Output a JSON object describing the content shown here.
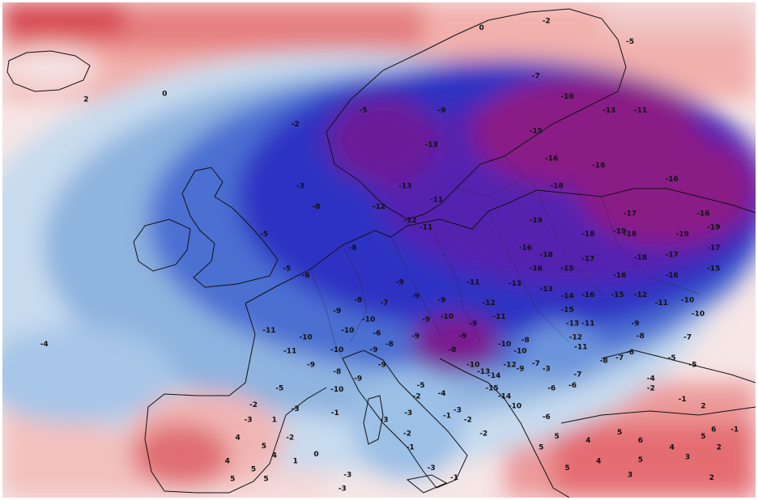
{
  "map": {
    "type": "temperature-anomaly-map",
    "region": "Europe",
    "colors": {
      "warm_strong": "#d6454e",
      "warm": "#f08c8c",
      "warm_light": "#f7c9c4",
      "neutral": "#f6eef0",
      "cool_light": "#c8dbee",
      "cool": "#8fb4df",
      "cold": "#4b70d2",
      "colder": "#2e33c2",
      "very_cold": "#6220a8",
      "extreme_cold": "#8a1c86",
      "coastline": "#111111"
    },
    "labels": [
      {
        "text": "2",
        "lon": -22,
        "lat": 64.8
      },
      {
        "text": "0",
        "lon": -14.5,
        "lat": 65.2
      },
      {
        "text": "-2",
        "lon": -2,
        "lat": 63
      },
      {
        "text": "-3",
        "lon": -1.5,
        "lat": 58.5
      },
      {
        "text": "-5",
        "lon": 4.5,
        "lat": 64
      },
      {
        "text": "-5",
        "lon": -5,
        "lat": 55
      },
      {
        "text": "-5",
        "lon": -2.8,
        "lat": 52.5
      },
      {
        "text": "-6",
        "lon": -1,
        "lat": 52
      },
      {
        "text": "-8",
        "lon": 0,
        "lat": 57
      },
      {
        "text": "-8",
        "lon": 3.5,
        "lat": 54
      },
      {
        "text": "-4",
        "lon": -26,
        "lat": 47
      },
      {
        "text": "0",
        "lon": 15.8,
        "lat": 70
      },
      {
        "text": "-2",
        "lon": 22,
        "lat": 70.5
      },
      {
        "text": "-5",
        "lon": 30,
        "lat": 69
      },
      {
        "text": "-7",
        "lon": 21,
        "lat": 66.5
      },
      {
        "text": "-10",
        "lon": 24,
        "lat": 65
      },
      {
        "text": "-13",
        "lon": 28,
        "lat": 64
      },
      {
        "text": "-11",
        "lon": 31,
        "lat": 64
      },
      {
        "text": "-9",
        "lon": 12,
        "lat": 64
      },
      {
        "text": "-13",
        "lon": 11,
        "lat": 61.5
      },
      {
        "text": "-15",
        "lon": 21,
        "lat": 62.5
      },
      {
        "text": "-16",
        "lon": 22.5,
        "lat": 60.5
      },
      {
        "text": "-18",
        "lon": 23,
        "lat": 58.5
      },
      {
        "text": "-16",
        "lon": 27,
        "lat": 60
      },
      {
        "text": "-16",
        "lon": 34,
        "lat": 59
      },
      {
        "text": "-16",
        "lon": 37,
        "lat": 56.5
      },
      {
        "text": "-13",
        "lon": 8.5,
        "lat": 58.5
      },
      {
        "text": "-12",
        "lon": 6,
        "lat": 57
      },
      {
        "text": "-12",
        "lon": 9,
        "lat": 56
      },
      {
        "text": "-11",
        "lon": 11.5,
        "lat": 57.5
      },
      {
        "text": "-11",
        "lon": 10.5,
        "lat": 55.5
      },
      {
        "text": "-17",
        "lon": 30,
        "lat": 56.5
      },
      {
        "text": "-18",
        "lon": 30,
        "lat": 55
      },
      {
        "text": "-19",
        "lon": 21,
        "lat": 56
      },
      {
        "text": "-18",
        "lon": 26,
        "lat": 55
      },
      {
        "text": "-19",
        "lon": 29,
        "lat": 55.2
      },
      {
        "text": "-19",
        "lon": 35,
        "lat": 55
      },
      {
        "text": "-19",
        "lon": 38,
        "lat": 55.5
      },
      {
        "text": "-17",
        "lon": 38,
        "lat": 54
      },
      {
        "text": "-16",
        "lon": 20,
        "lat": 54
      },
      {
        "text": "-18",
        "lon": 22,
        "lat": 53.5
      },
      {
        "text": "-17",
        "lon": 26,
        "lat": 53.2
      },
      {
        "text": "-18",
        "lon": 31,
        "lat": 53.3
      },
      {
        "text": "-17",
        "lon": 34,
        "lat": 53.5
      },
      {
        "text": "-16",
        "lon": 21,
        "lat": 52.5
      },
      {
        "text": "-15",
        "lon": 24,
        "lat": 52.5
      },
      {
        "text": "-16",
        "lon": 29,
        "lat": 52
      },
      {
        "text": "-16",
        "lon": 34,
        "lat": 52
      },
      {
        "text": "-15",
        "lon": 38,
        "lat": 52.5
      },
      {
        "text": "-11",
        "lon": 15,
        "lat": 51.5
      },
      {
        "text": "-13",
        "lon": 19,
        "lat": 51.4
      },
      {
        "text": "-13",
        "lon": 22,
        "lat": 51
      },
      {
        "text": "-14",
        "lon": 24,
        "lat": 50.5
      },
      {
        "text": "-16",
        "lon": 26,
        "lat": 50.6
      },
      {
        "text": "-15",
        "lon": 28.8,
        "lat": 50.6
      },
      {
        "text": "-12",
        "lon": 31,
        "lat": 50.6
      },
      {
        "text": "-11",
        "lon": 33,
        "lat": 50
      },
      {
        "text": "-10",
        "lon": 35.5,
        "lat": 50.2
      },
      {
        "text": "-10",
        "lon": 36.5,
        "lat": 49.2
      },
      {
        "text": "-9",
        "lon": 12,
        "lat": 50.2
      },
      {
        "text": "-12",
        "lon": 16.5,
        "lat": 50
      },
      {
        "text": "-11",
        "lon": 17.5,
        "lat": 49
      },
      {
        "text": "-15",
        "lon": 24,
        "lat": 49.5
      },
      {
        "text": "-13",
        "lon": 24.5,
        "lat": 48.5
      },
      {
        "text": "-11",
        "lon": 26,
        "lat": 48.5
      },
      {
        "text": "-12",
        "lon": 24.8,
        "lat": 47.5
      },
      {
        "text": "-11",
        "lon": 25.3,
        "lat": 46.8
      },
      {
        "text": "-9",
        "lon": 30.5,
        "lat": 48.5
      },
      {
        "text": "-8",
        "lon": 31,
        "lat": 47.6
      },
      {
        "text": "-7",
        "lon": 35.5,
        "lat": 47.5
      },
      {
        "text": "-7",
        "lon": 29,
        "lat": 46
      },
      {
        "text": "-8",
        "lon": 27.5,
        "lat": 45.8
      },
      {
        "text": "-6",
        "lon": 30,
        "lat": 46.4
      },
      {
        "text": "-5",
        "lon": 34,
        "lat": 46
      },
      {
        "text": "-5",
        "lon": 36,
        "lat": 45.5
      },
      {
        "text": "-4",
        "lon": 32,
        "lat": 44.5
      },
      {
        "text": "-2",
        "lon": 32,
        "lat": 43.8
      },
      {
        "text": "-1",
        "lon": 35,
        "lat": 43
      },
      {
        "text": "2",
        "lon": 37,
        "lat": 42.5
      },
      {
        "text": "-9",
        "lon": 8,
        "lat": 51.5
      },
      {
        "text": "-9",
        "lon": 9.5,
        "lat": 50.5
      },
      {
        "text": "-8",
        "lon": 4,
        "lat": 50.2
      },
      {
        "text": "-7",
        "lon": 6.5,
        "lat": 50
      },
      {
        "text": "-9",
        "lon": 2,
        "lat": 49.4
      },
      {
        "text": "-10",
        "lon": 5,
        "lat": 48.8
      },
      {
        "text": "-9",
        "lon": 10.5,
        "lat": 48.8
      },
      {
        "text": "-10",
        "lon": 12.5,
        "lat": 49
      },
      {
        "text": "-9",
        "lon": 15,
        "lat": 48.5
      },
      {
        "text": "-9",
        "lon": 14,
        "lat": 47.6
      },
      {
        "text": "-10",
        "lon": 3,
        "lat": 48
      },
      {
        "text": "-6",
        "lon": 5.8,
        "lat": 47.8
      },
      {
        "text": "-8",
        "lon": 7,
        "lat": 47
      },
      {
        "text": "-9",
        "lon": 9.5,
        "lat": 47.6
      },
      {
        "text": "-8",
        "lon": 13,
        "lat": 46.6
      },
      {
        "text": "-8",
        "lon": 20,
        "lat": 47.3
      },
      {
        "text": "-10",
        "lon": 18,
        "lat": 47
      },
      {
        "text": "-10",
        "lon": 19.5,
        "lat": 46.5
      },
      {
        "text": "-11",
        "lon": -4.5,
        "lat": 48
      },
      {
        "text": "-10",
        "lon": -1,
        "lat": 47.5
      },
      {
        "text": "-10",
        "lon": 2,
        "lat": 46.6
      },
      {
        "text": "-11",
        "lon": -2.5,
        "lat": 46.5
      },
      {
        "text": "-9",
        "lon": 5.5,
        "lat": 46.6
      },
      {
        "text": "-9",
        "lon": -0.5,
        "lat": 45.5
      },
      {
        "text": "-8",
        "lon": 2,
        "lat": 45
      },
      {
        "text": "-9",
        "lon": 6.3,
        "lat": 45.5
      },
      {
        "text": "-9",
        "lon": 4,
        "lat": 44.5
      },
      {
        "text": "-10",
        "lon": 2,
        "lat": 43.7
      },
      {
        "text": "-10",
        "lon": 15,
        "lat": 45.5
      },
      {
        "text": "-13",
        "lon": 16,
        "lat": 45
      },
      {
        "text": "-14",
        "lon": 17,
        "lat": 44.7
      },
      {
        "text": "-12",
        "lon": 18.5,
        "lat": 45.5
      },
      {
        "text": "-9",
        "lon": 19.5,
        "lat": 45.2
      },
      {
        "text": "-3",
        "lon": 22,
        "lat": 45.2
      },
      {
        "text": "-6",
        "lon": 24.5,
        "lat": 44
      },
      {
        "text": "-6",
        "lon": 22.5,
        "lat": 43.8
      },
      {
        "text": "-7",
        "lon": 25,
        "lat": 44.8
      },
      {
        "text": "-7",
        "lon": 21,
        "lat": 45.6
      },
      {
        "text": "-15",
        "lon": 16.8,
        "lat": 43.8
      },
      {
        "text": "-14",
        "lon": 18,
        "lat": 43.2
      },
      {
        "text": "-10",
        "lon": 19,
        "lat": 42.5
      },
      {
        "text": "-5",
        "lon": 10,
        "lat": 44
      },
      {
        "text": "-2",
        "lon": 9.6,
        "lat": 43.2
      },
      {
        "text": "-4",
        "lon": 12,
        "lat": 43.4
      },
      {
        "text": "-3",
        "lon": 13.5,
        "lat": 42.2
      },
      {
        "text": "-2",
        "lon": 14.5,
        "lat": 41.5
      },
      {
        "text": "-1",
        "lon": 12.5,
        "lat": 41.8
      },
      {
        "text": "-2",
        "lon": 16,
        "lat": 40.5
      },
      {
        "text": "-3",
        "lon": 8.8,
        "lat": 42
      },
      {
        "text": "-2",
        "lon": 8.7,
        "lat": 40.5
      },
      {
        "text": "-1",
        "lon": 9,
        "lat": 39.5
      },
      {
        "text": "-3",
        "lon": 6.5,
        "lat": 41.5
      },
      {
        "text": "-3",
        "lon": 11,
        "lat": 38
      },
      {
        "text": "-1",
        "lon": 13.2,
        "lat": 37.3
      },
      {
        "text": "-3",
        "lon": 2.5,
        "lat": 36.5
      },
      {
        "text": "-5",
        "lon": -3.5,
        "lat": 43.8
      },
      {
        "text": "-3",
        "lon": -2,
        "lat": 42.3
      },
      {
        "text": "-1",
        "lon": 1.8,
        "lat": 42
      },
      {
        "text": "-2",
        "lon": -6,
        "lat": 42.6
      },
      {
        "text": "1",
        "lon": -4,
        "lat": 41.5
      },
      {
        "text": "-3",
        "lon": -6.5,
        "lat": 41.5
      },
      {
        "text": "-2",
        "lon": -2.5,
        "lat": 40.2
      },
      {
        "text": "4",
        "lon": -7.5,
        "lat": 40.2
      },
      {
        "text": "5",
        "lon": -5,
        "lat": 39.6
      },
      {
        "text": "4",
        "lon": -4,
        "lat": 38.9
      },
      {
        "text": "1",
        "lon": -2,
        "lat": 38.5
      },
      {
        "text": "0",
        "lon": 0,
        "lat": 39
      },
      {
        "text": "5",
        "lon": -6,
        "lat": 37.9
      },
      {
        "text": "4",
        "lon": -8.5,
        "lat": 38.5
      },
      {
        "text": "5",
        "lon": -8,
        "lat": 37.2
      },
      {
        "text": "5",
        "lon": -4.8,
        "lat": 37.2
      },
      {
        "text": "-3",
        "lon": 3,
        "lat": 37.5
      },
      {
        "text": "-6",
        "lon": 22,
        "lat": 41.7
      },
      {
        "text": "5",
        "lon": 23,
        "lat": 40.3
      },
      {
        "text": "5",
        "lon": 21.5,
        "lat": 39.5
      },
      {
        "text": "4",
        "lon": 26,
        "lat": 40
      },
      {
        "text": "5",
        "lon": 29,
        "lat": 40.6
      },
      {
        "text": "6",
        "lon": 31,
        "lat": 40
      },
      {
        "text": "4",
        "lon": 34,
        "lat": 39.5
      },
      {
        "text": "3",
        "lon": 35.5,
        "lat": 38.8
      },
      {
        "text": "5",
        "lon": 31,
        "lat": 38.6
      },
      {
        "text": "4",
        "lon": 27,
        "lat": 38.5
      },
      {
        "text": "5",
        "lon": 24,
        "lat": 38
      },
      {
        "text": "3",
        "lon": 30,
        "lat": 37.5
      },
      {
        "text": "2",
        "lon": 37.8,
        "lat": 37.3
      },
      {
        "text": "6",
        "lon": 38,
        "lat": 40.8
      },
      {
        "text": "5",
        "lon": 37,
        "lat": 40.3
      },
      {
        "text": "-1",
        "lon": 40,
        "lat": 40.8
      },
      {
        "text": "2",
        "lon": 38.5,
        "lat": 39.5
      }
    ]
  }
}
